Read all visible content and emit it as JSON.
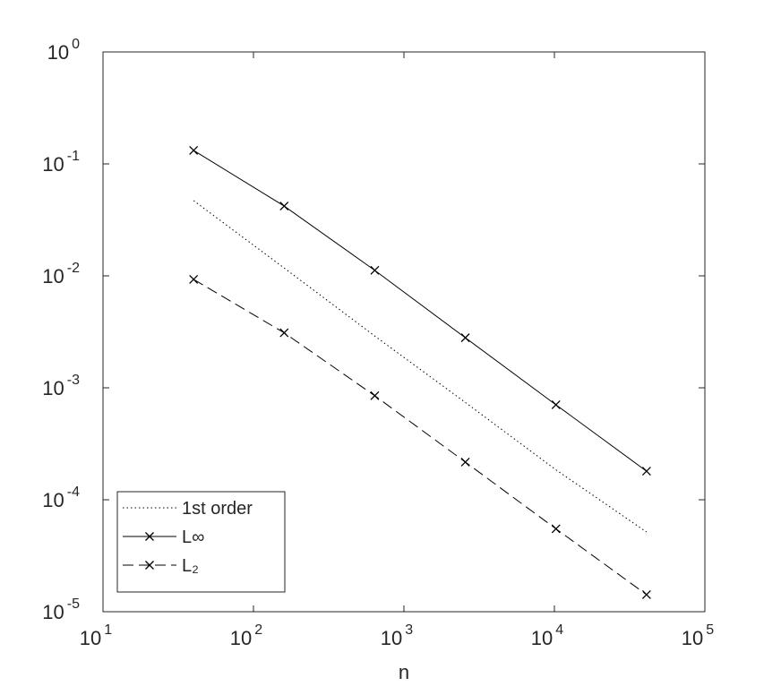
{
  "chart_data": {
    "type": "line",
    "xlabel": "n",
    "log_x": true,
    "log_y": true,
    "x": [
      40,
      160,
      640,
      2560,
      10240,
      40960
    ],
    "series": [
      {
        "name": "1st order",
        "color": "#000000",
        "style": "dotted",
        "marker": "none",
        "values": [
          0.047,
          0.01175,
          0.0029,
          0.00074,
          0.000185,
          5.15e-05
        ]
      },
      {
        "name": "L∞",
        "color": "#000000",
        "style": "solid",
        "marker": "x",
        "values": [
          0.132,
          0.042,
          0.0112,
          0.0028,
          0.000705,
          0.00018
        ]
      },
      {
        "name": "L₂",
        "color": "#000000",
        "style": "dashed",
        "marker": "x",
        "values": [
          0.0093,
          0.0031,
          0.00085,
          0.000217,
          5.5e-05,
          1.42e-05
        ]
      }
    ],
    "xlim": [
      10,
      100000
    ],
    "ylim": [
      1e-05,
      1
    ],
    "xticks": [
      {
        "value": 10,
        "label": "10",
        "exponent": "1"
      },
      {
        "value": 100,
        "label": "10",
        "exponent": "2"
      },
      {
        "value": 1000,
        "label": "10",
        "exponent": "3"
      },
      {
        "value": 10000,
        "label": "10",
        "exponent": "4"
      },
      {
        "value": 100000,
        "label": "10",
        "exponent": "5"
      }
    ],
    "yticks": [
      {
        "value": 1e-05,
        "label": "10",
        "exponent": "-5"
      },
      {
        "value": 0.0001,
        "label": "10",
        "exponent": "-4"
      },
      {
        "value": 0.001,
        "label": "10",
        "exponent": "-3"
      },
      {
        "value": 0.01,
        "label": "10",
        "exponent": "-2"
      },
      {
        "value": 0.1,
        "label": "10",
        "exponent": "-1"
      },
      {
        "value": 1,
        "label": "10",
        "exponent": "0"
      }
    ],
    "legend": "lower-left"
  }
}
